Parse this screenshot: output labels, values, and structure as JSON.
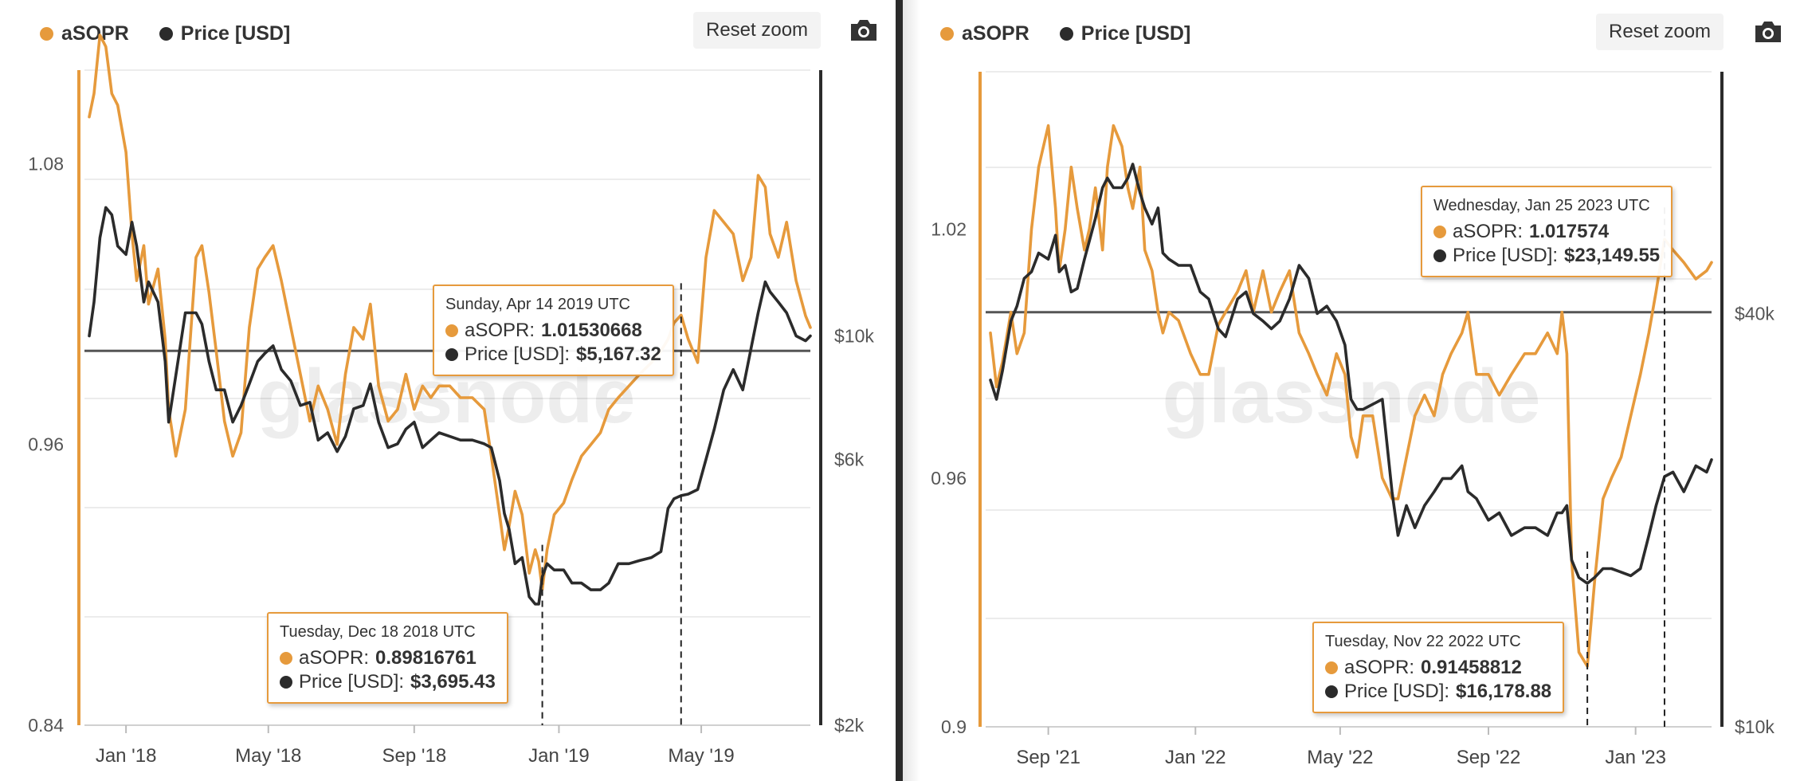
{
  "colors": {
    "asopr": "#e69a3c",
    "price": "#2b2b2b",
    "grid": "#e6e6e6"
  },
  "legend": {
    "asopr": "aSOPR",
    "price": "Price [USD]"
  },
  "controls": {
    "reset_zoom": "Reset zoom",
    "camera_icon": "camera-icon"
  },
  "watermark": "glassnode",
  "chart_data": [
    {
      "type": "line",
      "x_axis": {
        "type": "date",
        "ticks": [
          "Jan '18",
          "May '18",
          "Sep '18",
          "Jan '19",
          "May '19"
        ],
        "range": [
          "2017-12-01",
          "2019-08-01"
        ]
      },
      "y_left": {
        "label": "",
        "ticks": [
          "0.84",
          "0.96",
          "1.08"
        ],
        "range": [
          0.84,
          1.12
        ]
      },
      "y_right": {
        "label": "",
        "scale": "log",
        "ticks": [
          "$2k",
          "$6k",
          "$10k"
        ],
        "range": [
          2000,
          30000
        ]
      },
      "reference_line": {
        "axis": "left",
        "value": 1.0
      },
      "vertical_markers": [
        "2018-12-18",
        "2019-04-14"
      ],
      "series": [
        {
          "name": "aSOPR",
          "axis": "left",
          "x": [
            "2017-12-01",
            "2017-12-05",
            "2017-12-10",
            "2017-12-15",
            "2017-12-20",
            "2017-12-25",
            "2018-01-01",
            "2018-01-06",
            "2018-01-10",
            "2018-01-16",
            "2018-01-20",
            "2018-01-28",
            "2018-02-03",
            "2018-02-06",
            "2018-02-12",
            "2018-02-20",
            "2018-03-01",
            "2018-03-06",
            "2018-03-12",
            "2018-03-18",
            "2018-03-25",
            "2018-04-01",
            "2018-04-08",
            "2018-04-15",
            "2018-04-22",
            "2018-04-28",
            "2018-05-05",
            "2018-05-12",
            "2018-05-20",
            "2018-05-28",
            "2018-06-05",
            "2018-06-12",
            "2018-06-20",
            "2018-06-28",
            "2018-07-05",
            "2018-07-12",
            "2018-07-20",
            "2018-07-26",
            "2018-08-02",
            "2018-08-10",
            "2018-08-18",
            "2018-08-25",
            "2018-09-01",
            "2018-09-08",
            "2018-09-15",
            "2018-09-22",
            "2018-10-01",
            "2018-10-10",
            "2018-10-20",
            "2018-10-30",
            "2018-11-05",
            "2018-11-12",
            "2018-11-16",
            "2018-11-20",
            "2018-11-25",
            "2018-12-01",
            "2018-12-07",
            "2018-12-12",
            "2018-12-15",
            "2018-12-18",
            "2018-12-22",
            "2018-12-28",
            "2019-01-05",
            "2019-01-12",
            "2019-01-20",
            "2019-01-28",
            "2019-02-05",
            "2019-02-12",
            "2019-02-20",
            "2019-03-01",
            "2019-03-10",
            "2019-03-20",
            "2019-03-28",
            "2019-04-03",
            "2019-04-08",
            "2019-04-14",
            "2019-04-20",
            "2019-04-28",
            "2019-05-05",
            "2019-05-12",
            "2019-05-20",
            "2019-05-28",
            "2019-06-05",
            "2019-06-12",
            "2019-06-18",
            "2019-06-24",
            "2019-06-28",
            "2019-07-05",
            "2019-07-12",
            "2019-07-20",
            "2019-07-28",
            "2019-08-01"
          ],
          "values": [
            1.1,
            1.11,
            1.135,
            1.13,
            1.11,
            1.105,
            1.085,
            1.05,
            1.03,
            1.045,
            1.02,
            1.035,
            1.005,
            0.975,
            0.955,
            0.975,
            1.04,
            1.045,
            1.025,
            1.0,
            0.97,
            0.955,
            0.965,
            1.01,
            1.035,
            1.04,
            1.045,
            1.03,
            1.01,
            0.99,
            0.97,
            0.985,
            0.975,
            0.96,
            0.99,
            1.01,
            1.005,
            1.02,
            0.985,
            0.97,
            0.975,
            0.99,
            0.975,
            0.985,
            0.98,
            0.985,
            0.985,
            0.98,
            0.98,
            0.975,
            0.955,
            0.93,
            0.915,
            0.925,
            0.94,
            0.93,
            0.905,
            0.915,
            0.91,
            0.898,
            0.915,
            0.93,
            0.935,
            0.945,
            0.955,
            0.96,
            0.965,
            0.975,
            0.98,
            0.985,
            0.99,
            0.995,
            1.0,
            1.005,
            1.012,
            1.0153,
            1.005,
            0.995,
            1.04,
            1.06,
            1.055,
            1.05,
            1.03,
            1.04,
            1.075,
            1.07,
            1.05,
            1.04,
            1.055,
            1.03,
            1.015,
            1.01
          ]
        },
        {
          "name": "Price [USD]",
          "axis": "right",
          "x": [
            "2017-12-01",
            "2017-12-05",
            "2017-12-10",
            "2017-12-15",
            "2017-12-20",
            "2017-12-25",
            "2018-01-01",
            "2018-01-06",
            "2018-01-10",
            "2018-01-16",
            "2018-01-20",
            "2018-01-28",
            "2018-02-03",
            "2018-02-06",
            "2018-02-12",
            "2018-02-20",
            "2018-03-01",
            "2018-03-06",
            "2018-03-12",
            "2018-03-18",
            "2018-03-25",
            "2018-04-01",
            "2018-04-08",
            "2018-04-15",
            "2018-04-22",
            "2018-04-28",
            "2018-05-05",
            "2018-05-12",
            "2018-05-20",
            "2018-05-28",
            "2018-06-05",
            "2018-06-12",
            "2018-06-20",
            "2018-06-28",
            "2018-07-05",
            "2018-07-12",
            "2018-07-20",
            "2018-07-26",
            "2018-08-02",
            "2018-08-10",
            "2018-08-18",
            "2018-08-25",
            "2018-09-01",
            "2018-09-08",
            "2018-09-15",
            "2018-09-22",
            "2018-10-01",
            "2018-10-10",
            "2018-10-20",
            "2018-10-30",
            "2018-11-05",
            "2018-11-12",
            "2018-11-16",
            "2018-11-20",
            "2018-11-25",
            "2018-12-01",
            "2018-12-07",
            "2018-12-12",
            "2018-12-15",
            "2018-12-18",
            "2018-12-22",
            "2018-12-28",
            "2019-01-05",
            "2019-01-12",
            "2019-01-20",
            "2019-01-28",
            "2019-02-05",
            "2019-02-12",
            "2019-02-20",
            "2019-03-01",
            "2019-03-10",
            "2019-03-20",
            "2019-03-28",
            "2019-04-03",
            "2019-04-08",
            "2019-04-14",
            "2019-04-20",
            "2019-04-28",
            "2019-05-05",
            "2019-05-12",
            "2019-05-20",
            "2019-05-28",
            "2019-06-05",
            "2019-06-12",
            "2019-06-18",
            "2019-06-24",
            "2019-06-28",
            "2019-07-05",
            "2019-07-12",
            "2019-07-20",
            "2019-07-28",
            "2019-08-01"
          ],
          "values": [
            10000,
            11500,
            15000,
            17000,
            16500,
            14500,
            14000,
            16000,
            14500,
            11500,
            12500,
            11500,
            9000,
            7000,
            8500,
            11000,
            11000,
            10500,
            9000,
            8000,
            8000,
            7000,
            7500,
            8200,
            9000,
            9300,
            9600,
            8700,
            8300,
            7500,
            7600,
            6500,
            6700,
            6200,
            6600,
            7400,
            7500,
            8200,
            7000,
            6300,
            6400,
            6800,
            7000,
            6300,
            6500,
            6700,
            6600,
            6500,
            6500,
            6400,
            6300,
            5500,
            4800,
            4500,
            3900,
            4000,
            3400,
            3300,
            3300,
            3695.43,
            3900,
            3800,
            3800,
            3600,
            3600,
            3500,
            3500,
            3600,
            3900,
            3900,
            3950,
            4000,
            4100,
            4900,
            5100,
            5167.32,
            5200,
            5300,
            6000,
            6800,
            8000,
            8700,
            8000,
            9500,
            11000,
            12500,
            12000,
            11500,
            11000,
            10000,
            9800,
            10000
          ]
        }
      ],
      "tooltips": [
        {
          "date": "Sunday, Apr 14 2019 UTC",
          "asopr_label": "aSOPR:",
          "asopr_value": "1.01530668",
          "price_label": "Price [USD]:",
          "price_value": "$5,167.32"
        },
        {
          "date": "Tuesday, Dec 18 2018 UTC",
          "asopr_label": "aSOPR:",
          "asopr_value": "0.89816761",
          "price_label": "Price [USD]:",
          "price_value": "$3,695.43"
        }
      ]
    },
    {
      "type": "line",
      "x_axis": {
        "type": "date",
        "ticks": [
          "Sep '21",
          "Jan '22",
          "May '22",
          "Sep '22",
          "Jan '23"
        ],
        "range": [
          "2021-07-15",
          "2023-03-05"
        ]
      },
      "y_left": {
        "label": "",
        "ticks": [
          "0.9",
          "0.96",
          "1.02"
        ],
        "range": [
          0.9,
          1.058
        ]
      },
      "y_right": {
        "label": "",
        "scale": "log",
        "ticks": [
          "$10k",
          "$40k"
        ],
        "range": [
          10000,
          90000
        ]
      },
      "reference_line": {
        "axis": "left",
        "value": 1.0
      },
      "vertical_markers": [
        "2022-11-22",
        "2023-01-25"
      ],
      "series": [
        {
          "name": "aSOPR",
          "axis": "left",
          "x": [
            "2021-07-15",
            "2021-07-20",
            "2021-07-25",
            "2021-08-01",
            "2021-08-06",
            "2021-08-12",
            "2021-08-18",
            "2021-08-24",
            "2021-09-01",
            "2021-09-07",
            "2021-09-10",
            "2021-09-15",
            "2021-09-20",
            "2021-09-25",
            "2021-10-01",
            "2021-10-05",
            "2021-10-10",
            "2021-10-16",
            "2021-10-20",
            "2021-10-25",
            "2021-11-01",
            "2021-11-06",
            "2021-11-10",
            "2021-11-16",
            "2021-11-20",
            "2021-11-26",
            "2021-12-01",
            "2021-12-05",
            "2021-12-10",
            "2021-12-18",
            "2021-12-28",
            "2022-01-05",
            "2022-01-12",
            "2022-01-20",
            "2022-01-26",
            "2022-02-05",
            "2022-02-12",
            "2022-02-18",
            "2022-02-26",
            "2022-03-05",
            "2022-03-12",
            "2022-03-20",
            "2022-03-28",
            "2022-04-05",
            "2022-04-12",
            "2022-04-20",
            "2022-04-28",
            "2022-05-05",
            "2022-05-10",
            "2022-05-15",
            "2022-05-20",
            "2022-05-28",
            "2022-06-05",
            "2022-06-13",
            "2022-06-18",
            "2022-06-25",
            "2022-07-02",
            "2022-07-10",
            "2022-07-18",
            "2022-07-25",
            "2022-08-01",
            "2022-08-10",
            "2022-08-15",
            "2022-08-22",
            "2022-09-01",
            "2022-09-10",
            "2022-09-20",
            "2022-10-01",
            "2022-10-10",
            "2022-10-20",
            "2022-10-28",
            "2022-11-01",
            "2022-11-05",
            "2022-11-09",
            "2022-11-15",
            "2022-11-22",
            "2022-11-28",
            "2022-12-05",
            "2022-12-12",
            "2022-12-20",
            "2022-12-28",
            "2023-01-05",
            "2023-01-12",
            "2023-01-18",
            "2023-01-25",
            "2023-02-01",
            "2023-02-10",
            "2023-02-20",
            "2023-03-01",
            "2023-03-05"
          ],
          "values": [
            0.995,
            0.982,
            0.988,
            1.0,
            0.99,
            0.995,
            1.02,
            1.035,
            1.045,
            1.025,
            1.01,
            1.02,
            1.035,
            1.025,
            1.015,
            1.02,
            1.03,
            1.015,
            1.035,
            1.045,
            1.04,
            1.03,
            1.025,
            1.035,
            1.015,
            1.01,
            1.0,
            0.995,
            1.0,
            0.998,
            0.99,
            0.985,
            0.985,
            0.997,
            1.0,
            1.005,
            1.01,
            1.0,
            1.01,
            1.0,
            1.005,
            1.01,
            0.995,
            0.99,
            0.985,
            0.98,
            0.99,
            0.985,
            0.97,
            0.965,
            0.975,
            0.975,
            0.96,
            0.955,
            0.955,
            0.965,
            0.975,
            0.98,
            0.975,
            0.985,
            0.99,
            0.995,
            1.0,
            0.985,
            0.985,
            0.98,
            0.985,
            0.99,
            0.99,
            0.995,
            0.99,
            1.0,
            0.99,
            0.94,
            0.918,
            0.91458812,
            0.935,
            0.955,
            0.96,
            0.965,
            0.975,
            0.985,
            0.995,
            1.005,
            1.017574,
            1.015,
            1.012,
            1.008,
            1.01,
            1.012
          ]
        },
        {
          "name": "Price [USD]",
          "axis": "right",
          "x": [
            "2021-07-15",
            "2021-07-20",
            "2021-07-25",
            "2021-08-01",
            "2021-08-06",
            "2021-08-12",
            "2021-08-18",
            "2021-08-24",
            "2021-09-01",
            "2021-09-07",
            "2021-09-10",
            "2021-09-15",
            "2021-09-20",
            "2021-09-25",
            "2021-10-01",
            "2021-10-05",
            "2021-10-10",
            "2021-10-16",
            "2021-10-20",
            "2021-10-25",
            "2021-11-01",
            "2021-11-06",
            "2021-11-10",
            "2021-11-16",
            "2021-11-20",
            "2021-11-26",
            "2021-12-01",
            "2021-12-05",
            "2021-12-10",
            "2021-12-18",
            "2021-12-28",
            "2022-01-05",
            "2022-01-12",
            "2022-01-20",
            "2022-01-26",
            "2022-02-05",
            "2022-02-12",
            "2022-02-18",
            "2022-02-26",
            "2022-03-05",
            "2022-03-12",
            "2022-03-20",
            "2022-03-28",
            "2022-04-05",
            "2022-04-12",
            "2022-04-20",
            "2022-04-28",
            "2022-05-05",
            "2022-05-10",
            "2022-05-15",
            "2022-05-20",
            "2022-05-28",
            "2022-06-05",
            "2022-06-13",
            "2022-06-18",
            "2022-06-25",
            "2022-07-02",
            "2022-07-10",
            "2022-07-18",
            "2022-07-25",
            "2022-08-01",
            "2022-08-10",
            "2022-08-15",
            "2022-08-22",
            "2022-09-01",
            "2022-09-10",
            "2022-09-20",
            "2022-10-01",
            "2022-10-10",
            "2022-10-20",
            "2022-10-28",
            "2022-11-01",
            "2022-11-05",
            "2022-11-09",
            "2022-11-15",
            "2022-11-22",
            "2022-11-28",
            "2022-12-05",
            "2022-12-12",
            "2022-12-20",
            "2022-12-28",
            "2023-01-05",
            "2023-01-12",
            "2023-01-18",
            "2023-01-25",
            "2023-02-01",
            "2023-02-10",
            "2023-02-20",
            "2023-03-01",
            "2023-03-05"
          ],
          "values": [
            32000,
            30000,
            33000,
            39000,
            41000,
            45000,
            46000,
            49000,
            48000,
            52000,
            46000,
            47000,
            43000,
            43500,
            48000,
            51000,
            55000,
            61000,
            63000,
            61000,
            61000,
            63000,
            66000,
            60000,
            57000,
            54000,
            57000,
            49000,
            48000,
            47000,
            47000,
            43000,
            42000,
            38000,
            37000,
            42000,
            43000,
            40000,
            39000,
            38000,
            39000,
            42000,
            47000,
            45000,
            40000,
            41000,
            39000,
            36000,
            30000,
            29000,
            29000,
            29500,
            30000,
            22000,
            19000,
            21000,
            19500,
            21000,
            22000,
            23000,
            23000,
            24000,
            22000,
            21500,
            20000,
            20500,
            19000,
            19500,
            19500,
            19000,
            20500,
            20500,
            21000,
            17500,
            16500,
            16178.88,
            16500,
            17000,
            17000,
            16800,
            16600,
            17000,
            19000,
            21000,
            23149.55,
            23500,
            22000,
            24000,
            23500,
            24500
          ]
        }
      ],
      "tooltips": [
        {
          "date": "Wednesday, Jan 25 2023 UTC",
          "asopr_label": "aSOPR:",
          "asopr_value": "1.017574",
          "price_label": "Price [USD]:",
          "price_value": "$23,149.55"
        },
        {
          "date": "Tuesday, Nov 22 2022 UTC",
          "asopr_label": "aSOPR:",
          "asopr_value": "0.91458812",
          "price_label": "Price [USD]:",
          "price_value": "$16,178.88"
        }
      ]
    }
  ]
}
